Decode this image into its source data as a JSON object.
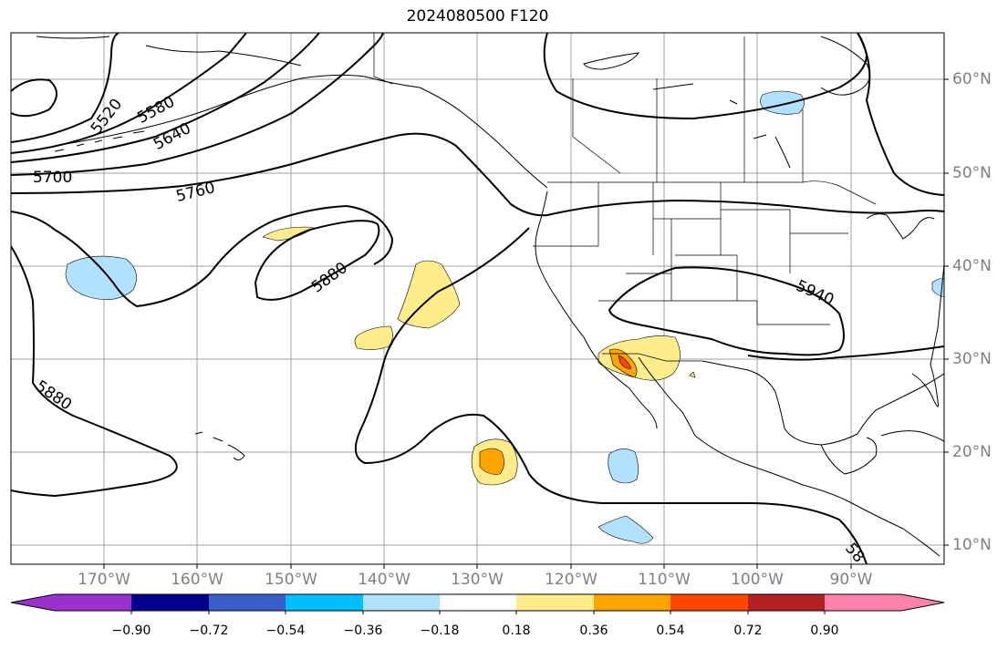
{
  "title": "2024080500 F120",
  "map": {
    "projection": "PlateCarree",
    "extent_lon": [
      -180,
      -80
    ],
    "extent_lat": [
      8,
      65
    ],
    "gridlines": true,
    "lon_labels": [
      "170°W",
      "160°W",
      "150°W",
      "140°W",
      "130°W",
      "120°W",
      "110°W",
      "100°W",
      "90°W"
    ],
    "lat_labels": [
      "60°N",
      "50°N",
      "40°N",
      "30°N",
      "20°N",
      "10°N"
    ],
    "contour_color": "#000000",
    "contour_labels": [
      "5520",
      "5580",
      "5640",
      "5700",
      "5760",
      "5880",
      "5880",
      "5940",
      "58"
    ]
  },
  "colorbar": {
    "extend": "both",
    "colors": [
      "#9932cc",
      "#00008b",
      "#3a5fcd",
      "#00bfff",
      "#b0e2ff",
      "#ffffff",
      "#ffec8b",
      "#ffa500",
      "#ff4500",
      "#b22222",
      "#ff82ab"
    ],
    "tick_labels": [
      "−0.90",
      "−0.72",
      "−0.54",
      "−0.36",
      "−0.18",
      "0.18",
      "0.36",
      "0.54",
      "0.72",
      "0.90"
    ]
  }
}
